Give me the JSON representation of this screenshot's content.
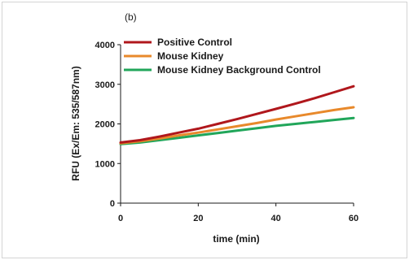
{
  "chart_data": {
    "type": "line",
    "panel_label": "(b)",
    "title": "",
    "xlabel": "time (min)",
    "ylabel": "RFU (Ex/Em: 535/587nm)",
    "xlim": [
      0,
      60
    ],
    "ylim": [
      0,
      4000
    ],
    "xticks": [
      0,
      20,
      40,
      60
    ],
    "yticks": [
      0,
      1000,
      2000,
      3000,
      4000
    ],
    "grid": false,
    "legend_position": "top-left",
    "x": [
      0,
      5,
      10,
      15,
      20,
      25,
      30,
      35,
      40,
      45,
      50,
      55,
      60
    ],
    "series": [
      {
        "name": "Positive Control",
        "color": "#b0171c",
        "values": [
          1530,
          1590,
          1680,
          1780,
          1880,
          2000,
          2120,
          2250,
          2380,
          2510,
          2650,
          2800,
          2950
        ]
      },
      {
        "name": "Mouse Kidney",
        "color": "#e8892b",
        "values": [
          1510,
          1560,
          1630,
          1710,
          1780,
          1860,
          1940,
          2020,
          2110,
          2190,
          2270,
          2350,
          2420
        ]
      },
      {
        "name": "Mouse Kidney Background Control",
        "color": "#21a65a",
        "values": [
          1490,
          1530,
          1590,
          1650,
          1710,
          1770,
          1830,
          1890,
          1950,
          2000,
          2050,
          2100,
          2150
        ]
      }
    ]
  }
}
